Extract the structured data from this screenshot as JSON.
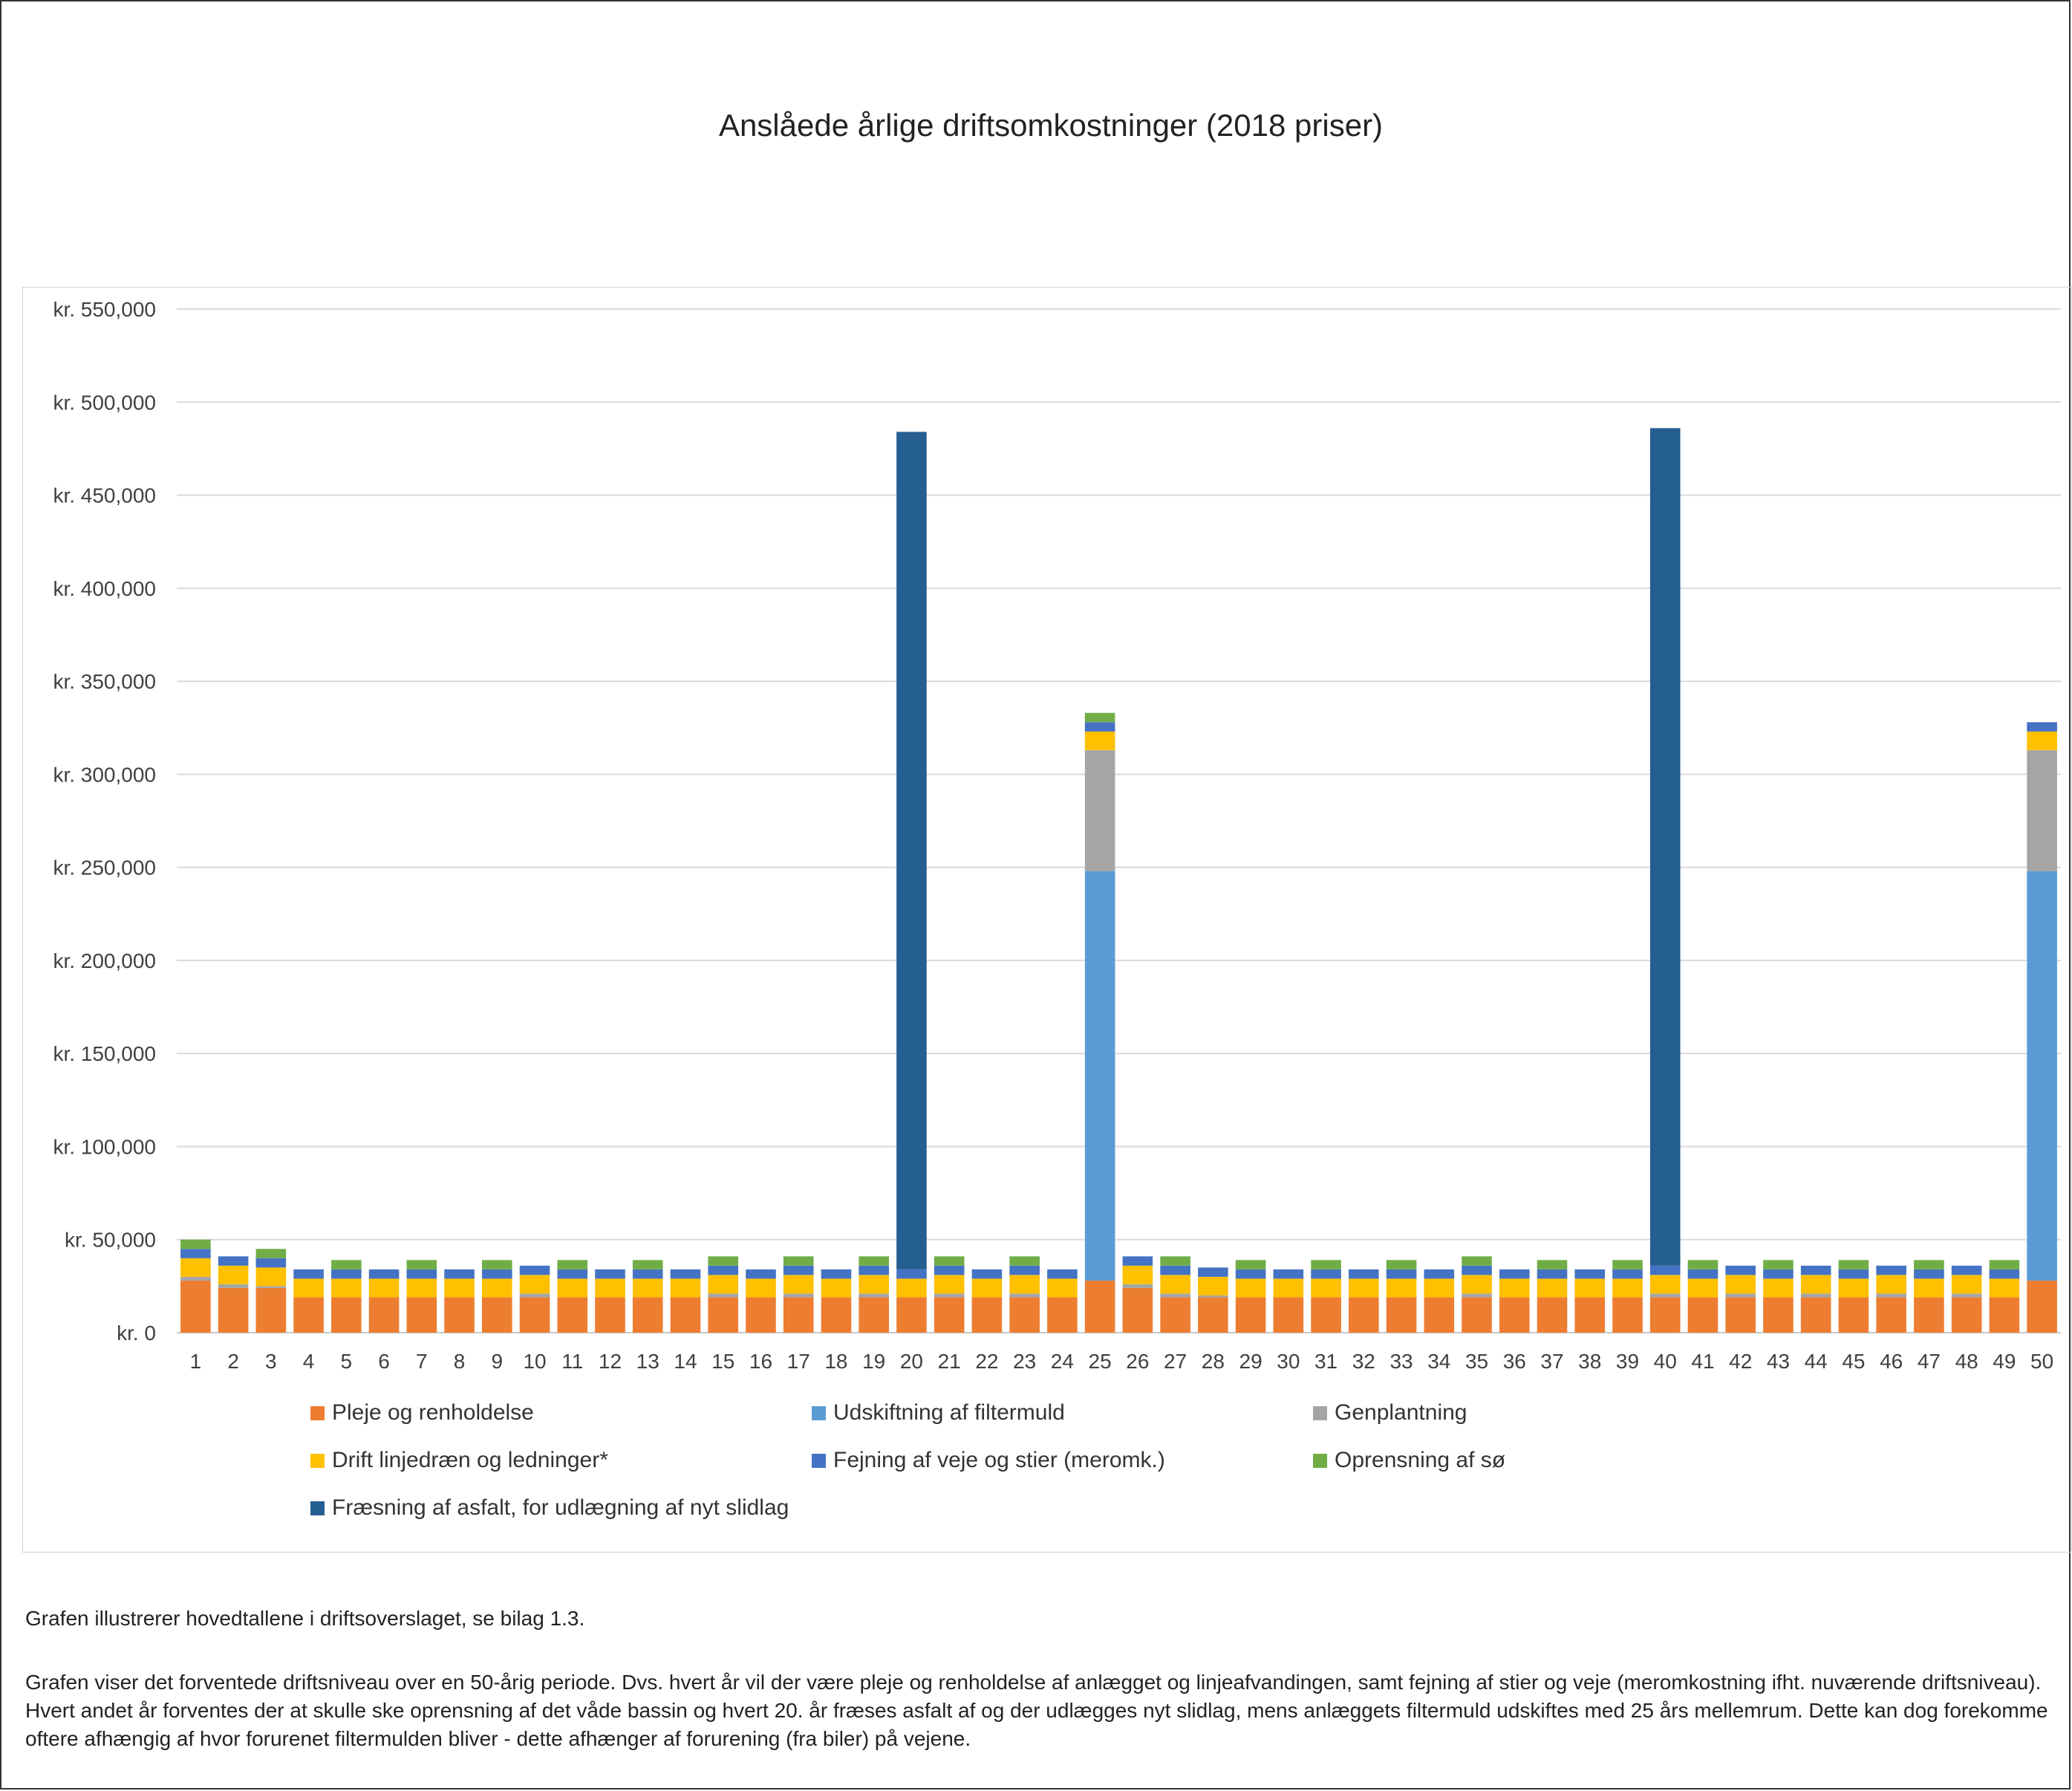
{
  "chart_data": {
    "type": "bar",
    "stacked": true,
    "title": "Anslåede årlige driftsomkostninger (2018 priser)",
    "xlabel": "",
    "ylabel": "",
    "ylim": [
      0,
      550000
    ],
    "yticks": [
      0,
      50000,
      100000,
      150000,
      200000,
      250000,
      300000,
      350000,
      400000,
      450000,
      500000,
      550000
    ],
    "ytick_labels": [
      "kr. 0",
      "kr. 50,000",
      "kr. 100,000",
      "kr. 150,000",
      "kr. 200,000",
      "kr. 250,000",
      "kr. 300,000",
      "kr. 350,000",
      "kr. 400,000",
      "kr. 450,000",
      "kr. 500,000",
      "kr. 550,000"
    ],
    "grid": true,
    "legend_position": "bottom",
    "categories": [
      "1",
      "2",
      "3",
      "4",
      "5",
      "6",
      "7",
      "8",
      "9",
      "10",
      "11",
      "12",
      "13",
      "14",
      "15",
      "16",
      "17",
      "18",
      "19",
      "20",
      "21",
      "22",
      "23",
      "24",
      "25",
      "26",
      "27",
      "28",
      "29",
      "30",
      "31",
      "32",
      "33",
      "34",
      "35",
      "36",
      "37",
      "38",
      "39",
      "40",
      "41",
      "42",
      "43",
      "44",
      "45",
      "46",
      "47",
      "48",
      "49",
      "50"
    ],
    "series": [
      {
        "name": "Pleje og renholdelse",
        "color": "#ED7D31",
        "values": [
          28000,
          24000,
          24000,
          19000,
          19000,
          19000,
          19000,
          19000,
          19000,
          19000,
          19000,
          19000,
          19000,
          19000,
          19000,
          19000,
          19000,
          19000,
          19000,
          19000,
          19000,
          19000,
          19000,
          19000,
          28000,
          24000,
          19000,
          19000,
          19000,
          19000,
          19000,
          19000,
          19000,
          19000,
          19000,
          19000,
          19000,
          19000,
          19000,
          19000,
          19000,
          19000,
          19000,
          19000,
          19000,
          19000,
          19000,
          19000,
          19000,
          28000
        ]
      },
      {
        "name": "Udskiftning af  filtermuld",
        "color": "#5B9BD5",
        "values": [
          0,
          0,
          0,
          0,
          0,
          0,
          0,
          0,
          0,
          0,
          0,
          0,
          0,
          0,
          0,
          0,
          0,
          0,
          0,
          0,
          0,
          0,
          0,
          0,
          220000,
          0,
          0,
          0,
          0,
          0,
          0,
          0,
          0,
          0,
          0,
          0,
          0,
          0,
          0,
          0,
          0,
          0,
          0,
          0,
          0,
          0,
          0,
          0,
          0,
          220000
        ]
      },
      {
        "name": "Genplantning",
        "color": "#A5A5A5",
        "values": [
          2000,
          2000,
          1000,
          0,
          0,
          0,
          0,
          0,
          0,
          2000,
          0,
          0,
          0,
          0,
          2000,
          0,
          2000,
          0,
          2000,
          0,
          2000,
          0,
          2000,
          0,
          65000,
          2000,
          2000,
          1000,
          0,
          0,
          0,
          0,
          0,
          0,
          2000,
          0,
          0,
          0,
          0,
          2000,
          0,
          2000,
          0,
          2000,
          0,
          2000,
          0,
          2000,
          0,
          65000
        ]
      },
      {
        "name": "Drift linjedræn og ledninger*",
        "color": "#FFC000",
        "values": [
          10000,
          10000,
          10000,
          10000,
          10000,
          10000,
          10000,
          10000,
          10000,
          10000,
          10000,
          10000,
          10000,
          10000,
          10000,
          10000,
          10000,
          10000,
          10000,
          10000,
          10000,
          10000,
          10000,
          10000,
          10000,
          10000,
          10000,
          10000,
          10000,
          10000,
          10000,
          10000,
          10000,
          10000,
          10000,
          10000,
          10000,
          10000,
          10000,
          10000,
          10000,
          10000,
          10000,
          10000,
          10000,
          10000,
          10000,
          10000,
          10000,
          10000
        ]
      },
      {
        "name": "Fejning af veje og stier (meromk.)",
        "color": "#4472C4",
        "values": [
          5000,
          5000,
          5000,
          5000,
          5000,
          5000,
          5000,
          5000,
          5000,
          5000,
          5000,
          5000,
          5000,
          5000,
          5000,
          5000,
          5000,
          5000,
          5000,
          5000,
          5000,
          5000,
          5000,
          5000,
          5000,
          5000,
          5000,
          5000,
          5000,
          5000,
          5000,
          5000,
          5000,
          5000,
          5000,
          5000,
          5000,
          5000,
          5000,
          5000,
          5000,
          5000,
          5000,
          5000,
          5000,
          5000,
          5000,
          5000,
          5000,
          5000
        ]
      },
      {
        "name": "Oprensning af sø",
        "color": "#70AD47",
        "values": [
          5000,
          0,
          5000,
          0,
          5000,
          0,
          5000,
          0,
          5000,
          0,
          5000,
          0,
          5000,
          0,
          5000,
          0,
          5000,
          0,
          5000,
          0,
          5000,
          0,
          5000,
          0,
          5000,
          0,
          5000,
          0,
          5000,
          0,
          5000,
          0,
          5000,
          0,
          5000,
          0,
          5000,
          0,
          5000,
          0,
          5000,
          0,
          5000,
          0,
          5000,
          0,
          5000,
          0,
          5000,
          0
        ]
      },
      {
        "name": "Fræsning af asfalt, for udlægning af nyt slidlag",
        "color": "#255E91",
        "values": [
          0,
          0,
          0,
          0,
          0,
          0,
          0,
          0,
          0,
          0,
          0,
          0,
          0,
          0,
          0,
          0,
          0,
          0,
          0,
          450000,
          0,
          0,
          0,
          0,
          0,
          0,
          0,
          0,
          0,
          0,
          0,
          0,
          0,
          0,
          0,
          0,
          0,
          0,
          0,
          450000,
          0,
          0,
          0,
          0,
          0,
          0,
          0,
          0,
          0,
          0
        ]
      }
    ]
  },
  "captions": {
    "line1": "Grafen illustrerer hovedtallene i driftsoverslaget, se bilag 1.3.",
    "line2": "Grafen viser det forventede driftsniveau over en 50-årig periode. Dvs. hvert år vil der være pleje og renholdelse af anlægget og linjeafvandingen, samt fejning af stier og veje (meromkostning ifht. nuværende driftsniveau). Hvert andet år forventes der at skulle ske oprensning af det våde bassin og hvert 20. år fræses asfalt af og der udlægges nyt slidlag, mens anlæggets filtermuld udskiftes med 25 års mellemrum. Dette kan dog forekomme oftere afhængig af hvor forurenet filtermulden bliver - dette afhænger af forurening (fra biler) på vejene."
  }
}
